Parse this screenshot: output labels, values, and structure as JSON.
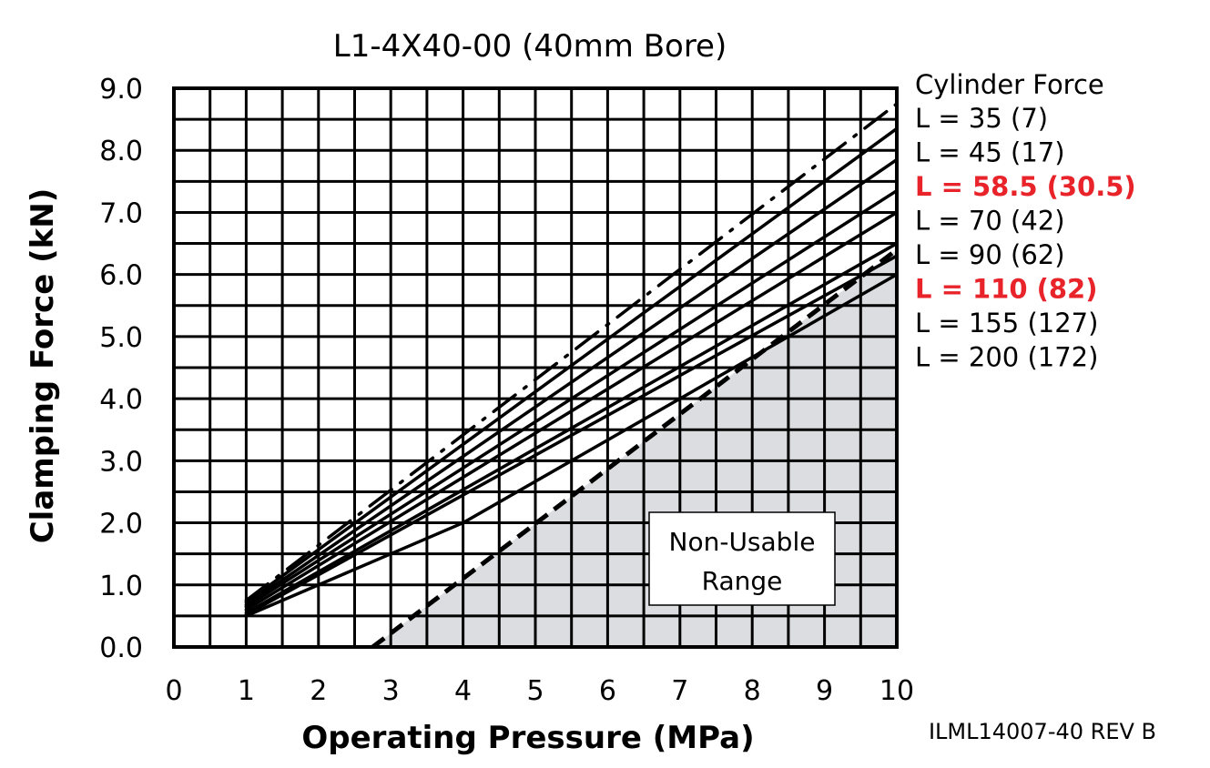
{
  "chart_data": {
    "type": "line",
    "title": "L1-4X40-00 (40mm Bore)",
    "xlabel": "Operating Pressure (MPa)",
    "ylabel": "Clamping Force (kN)",
    "xlim": [
      0,
      10
    ],
    "ylim": [
      0,
      9
    ],
    "x_ticks": [
      "0",
      "1",
      "2",
      "3",
      "4",
      "5",
      "6",
      "7",
      "8",
      "9",
      "10"
    ],
    "y_ticks": [
      "0.0",
      "1.0",
      "2.0",
      "3.0",
      "4.0",
      "5.0",
      "6.0",
      "7.0",
      "8.0",
      "9.0"
    ],
    "grid": true,
    "legend_title": "Cylinder Force",
    "legend_position": "right",
    "series": [
      {
        "name": "L = 35 (7)",
        "style": "dash-dot",
        "x": [
          1,
          10
        ],
        "y": [
          0.75,
          8.75
        ],
        "highlight": false
      },
      {
        "name": "L = 45 (17)",
        "style": "solid",
        "x": [
          1,
          10
        ],
        "y": [
          0.72,
          8.35
        ],
        "highlight": false
      },
      {
        "name": "L = 58.5 (30.5)",
        "style": "solid",
        "x": [
          1,
          10
        ],
        "y": [
          0.68,
          7.85
        ],
        "highlight": true
      },
      {
        "name": "L = 70 (42)",
        "style": "solid",
        "x": [
          1,
          10
        ],
        "y": [
          0.65,
          7.35
        ],
        "highlight": false
      },
      {
        "name": "L = 90 (62)",
        "style": "solid",
        "x": [
          1,
          10
        ],
        "y": [
          0.6,
          7.0
        ],
        "highlight": false
      },
      {
        "name": "L = 110 (82)",
        "style": "solid",
        "x": [
          1,
          10
        ],
        "y": [
          0.55,
          6.5
        ],
        "highlight": true
      },
      {
        "name": "L = 155 (127)",
        "style": "solid",
        "x": [
          1,
          10
        ],
        "y": [
          0.52,
          6.3
        ],
        "highlight": false
      },
      {
        "name": "L = 200 (172)",
        "style": "solid",
        "x": [
          1,
          4,
          10
        ],
        "y": [
          0.5,
          2.0,
          6.0
        ],
        "highlight": false
      }
    ],
    "limit_line": {
      "style": "dashed",
      "x": [
        2.75,
        10
      ],
      "y": [
        0,
        6.4
      ]
    },
    "non_usable_region": {
      "label_line1": "Non-Usable",
      "label_line2": "Range",
      "fill": "#dcdde0"
    },
    "highlight_color": "#e8232a",
    "reference_code": "ILML14007-40 REV B"
  }
}
